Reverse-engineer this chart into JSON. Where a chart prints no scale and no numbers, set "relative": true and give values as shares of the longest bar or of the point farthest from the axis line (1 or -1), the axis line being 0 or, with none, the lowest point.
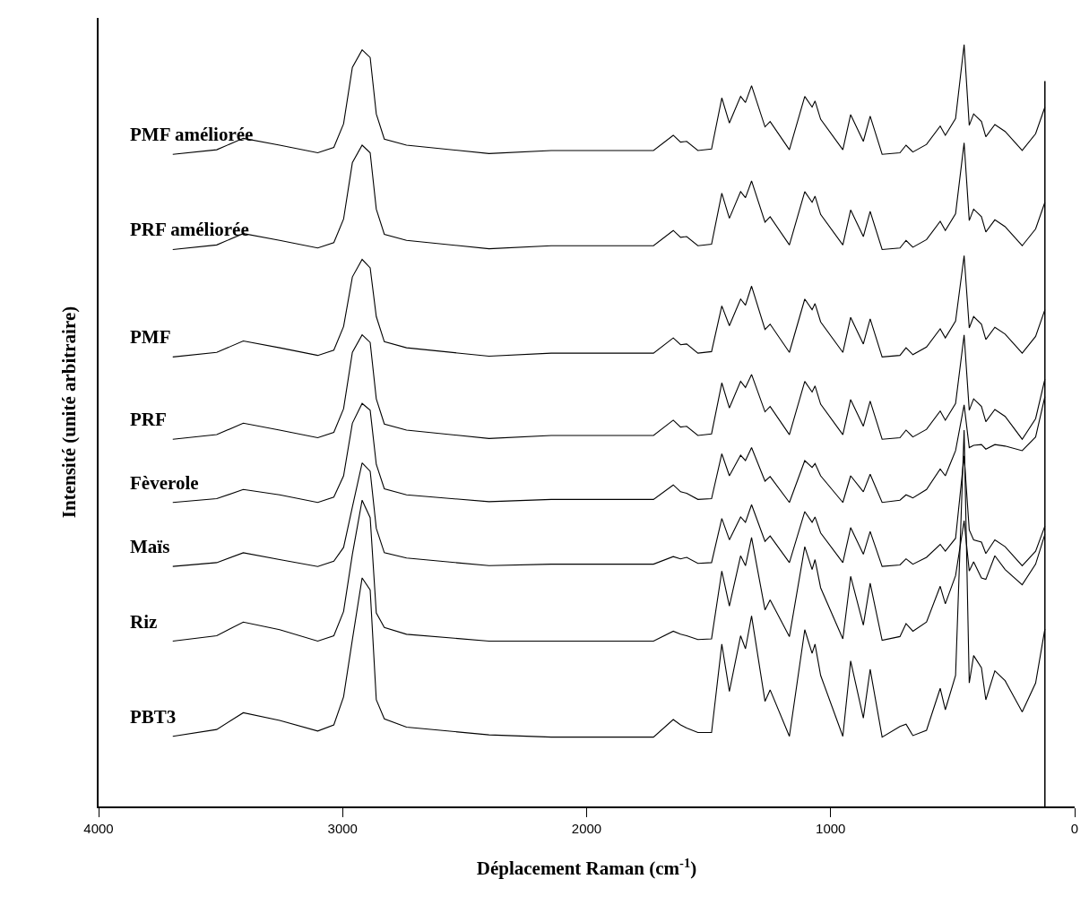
{
  "chart_data": {
    "type": "line",
    "relative": true,
    "xlabel": "Déplacement Raman (cm$^{-1}$)",
    "ylabel": "Intensité (unité arbitraire)",
    "x": [
      3696,
      3516,
      3407,
      3258,
      3102,
      3036,
      2996,
      2960,
      2920,
      2887,
      2862,
      2829,
      2738,
      2400,
      2145,
      1726,
      1645,
      1615,
      1590,
      1544,
      1488,
      1446,
      1415,
      1369,
      1349,
      1324,
      1269,
      1248,
      1169,
      1106,
      1076,
      1064,
      1041,
      950,
      918,
      866,
      838,
      789,
      716,
      691,
      663,
      607,
      551,
      530,
      488,
      453,
      432,
      414,
      382,
      364,
      327,
      285,
      215,
      160,
      122
    ],
    "xlim": [
      4000,
      0
    ],
    "xticks": [
      4000,
      3000,
      2000,
      1000,
      0
    ],
    "legend": false,
    "marker": "none",
    "line_style": "solid",
    "series": [
      {
        "name": "PMF améliorée",
        "color": "#000000",
        "values": [
          0.856,
          0.862,
          0.877,
          0.868,
          0.858,
          0.865,
          0.896,
          0.97,
          0.993,
          0.983,
          0.909,
          0.876,
          0.868,
          0.857,
          0.861,
          0.861,
          0.881,
          0.872,
          0.873,
          0.861,
          0.863,
          0.93,
          0.897,
          0.932,
          0.924,
          0.946,
          0.892,
          0.899,
          0.862,
          0.932,
          0.918,
          0.926,
          0.902,
          0.862,
          0.908,
          0.873,
          0.906,
          0.856,
          0.858,
          0.868,
          0.859,
          0.869,
          0.893,
          0.881,
          0.903,
          1.0,
          0.894,
          0.909,
          0.899,
          0.879,
          0.895,
          0.886,
          0.861,
          0.883,
          0.918
        ]
      },
      {
        "name": "PRF améliorée",
        "color": "#000000",
        "values": [
          0.731,
          0.737,
          0.752,
          0.743,
          0.733,
          0.74,
          0.771,
          0.845,
          0.868,
          0.858,
          0.784,
          0.751,
          0.743,
          0.732,
          0.736,
          0.736,
          0.756,
          0.747,
          0.748,
          0.736,
          0.738,
          0.805,
          0.772,
          0.807,
          0.799,
          0.821,
          0.767,
          0.774,
          0.737,
          0.807,
          0.793,
          0.801,
          0.777,
          0.737,
          0.783,
          0.748,
          0.781,
          0.731,
          0.733,
          0.743,
          0.734,
          0.744,
          0.768,
          0.756,
          0.778,
          0.871,
          0.769,
          0.784,
          0.774,
          0.754,
          0.77,
          0.761,
          0.736,
          0.758,
          0.793
        ]
      },
      {
        "name": "PMF",
        "color": "#000000",
        "values": [
          0.59,
          0.596,
          0.611,
          0.602,
          0.592,
          0.599,
          0.63,
          0.695,
          0.718,
          0.707,
          0.643,
          0.61,
          0.602,
          0.591,
          0.595,
          0.595,
          0.615,
          0.606,
          0.607,
          0.595,
          0.597,
          0.657,
          0.631,
          0.666,
          0.658,
          0.683,
          0.626,
          0.633,
          0.596,
          0.666,
          0.652,
          0.66,
          0.636,
          0.596,
          0.642,
          0.607,
          0.64,
          0.59,
          0.592,
          0.602,
          0.593,
          0.603,
          0.627,
          0.615,
          0.637,
          0.723,
          0.628,
          0.643,
          0.633,
          0.613,
          0.629,
          0.62,
          0.595,
          0.617,
          0.652
        ]
      },
      {
        "name": "PRF",
        "color": "#000000",
        "values": [
          0.482,
          0.488,
          0.503,
          0.494,
          0.484,
          0.491,
          0.522,
          0.596,
          0.619,
          0.609,
          0.535,
          0.502,
          0.494,
          0.483,
          0.487,
          0.487,
          0.507,
          0.498,
          0.499,
          0.487,
          0.489,
          0.556,
          0.523,
          0.558,
          0.55,
          0.567,
          0.518,
          0.525,
          0.488,
          0.558,
          0.544,
          0.552,
          0.528,
          0.488,
          0.534,
          0.499,
          0.532,
          0.482,
          0.484,
          0.494,
          0.485,
          0.495,
          0.519,
          0.507,
          0.529,
          0.619,
          0.52,
          0.535,
          0.525,
          0.505,
          0.521,
          0.512,
          0.482,
          0.509,
          0.561
        ]
      },
      {
        "name": "Fèverole",
        "color": "#000000",
        "values": [
          0.399,
          0.404,
          0.416,
          0.409,
          0.399,
          0.406,
          0.434,
          0.503,
          0.529,
          0.52,
          0.449,
          0.417,
          0.409,
          0.4,
          0.403,
          0.403,
          0.422,
          0.413,
          0.411,
          0.403,
          0.404,
          0.463,
          0.434,
          0.461,
          0.454,
          0.471,
          0.427,
          0.433,
          0.399,
          0.454,
          0.445,
          0.45,
          0.434,
          0.399,
          0.434,
          0.413,
          0.436,
          0.399,
          0.402,
          0.409,
          0.405,
          0.416,
          0.443,
          0.434,
          0.467,
          0.527,
          0.471,
          0.474,
          0.475,
          0.469,
          0.475,
          0.473,
          0.467,
          0.485,
          0.538
        ]
      },
      {
        "name": "Maïs",
        "color": "#000000",
        "values": [
          0.315,
          0.32,
          0.333,
          0.324,
          0.315,
          0.322,
          0.34,
          0.393,
          0.451,
          0.44,
          0.365,
          0.333,
          0.326,
          0.316,
          0.318,
          0.318,
          0.328,
          0.325,
          0.327,
          0.319,
          0.32,
          0.378,
          0.35,
          0.38,
          0.373,
          0.396,
          0.348,
          0.355,
          0.32,
          0.387,
          0.373,
          0.38,
          0.359,
          0.32,
          0.366,
          0.331,
          0.361,
          0.315,
          0.317,
          0.325,
          0.318,
          0.327,
          0.344,
          0.335,
          0.352,
          0.46,
          0.363,
          0.35,
          0.347,
          0.332,
          0.35,
          0.341,
          0.316,
          0.335,
          0.368
        ]
      },
      {
        "name": "Riz",
        "color": "#000000",
        "values": [
          0.217,
          0.224,
          0.242,
          0.232,
          0.217,
          0.224,
          0.256,
          0.331,
          0.402,
          0.379,
          0.254,
          0.235,
          0.226,
          0.217,
          0.217,
          0.217,
          0.23,
          0.226,
          0.224,
          0.219,
          0.22,
          0.309,
          0.263,
          0.329,
          0.316,
          0.353,
          0.258,
          0.271,
          0.223,
          0.341,
          0.311,
          0.324,
          0.287,
          0.22,
          0.302,
          0.238,
          0.293,
          0.218,
          0.223,
          0.24,
          0.23,
          0.242,
          0.289,
          0.266,
          0.303,
          0.375,
          0.309,
          0.321,
          0.3,
          0.298,
          0.329,
          0.311,
          0.291,
          0.318,
          0.357
        ]
      },
      {
        "name": "PBT3",
        "color": "#000000",
        "values": [
          0.092,
          0.101,
          0.123,
          0.113,
          0.099,
          0.107,
          0.144,
          0.219,
          0.3,
          0.284,
          0.14,
          0.115,
          0.104,
          0.094,
          0.091,
          0.091,
          0.114,
          0.107,
          0.103,
          0.097,
          0.097,
          0.213,
          0.151,
          0.224,
          0.207,
          0.25,
          0.138,
          0.153,
          0.092,
          0.232,
          0.201,
          0.213,
          0.172,
          0.092,
          0.191,
          0.116,
          0.18,
          0.091,
          0.105,
          0.108,
          0.093,
          0.1,
          0.155,
          0.127,
          0.172,
          0.494,
          0.162,
          0.198,
          0.182,
          0.14,
          0.178,
          0.165,
          0.124,
          0.162,
          0.233
        ]
      }
    ],
    "ref_lines": [
      {
        "axis": "x",
        "value": 122,
        "color": "#000000",
        "line_style": "solid"
      }
    ]
  }
}
